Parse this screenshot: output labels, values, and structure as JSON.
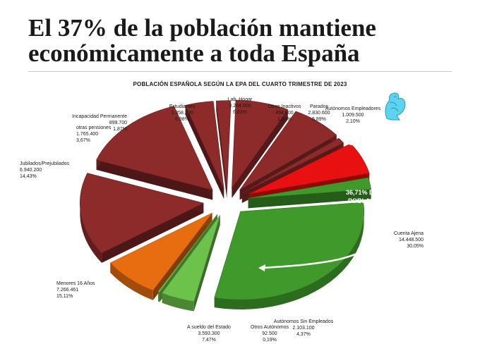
{
  "headline": "El 37% de la población mantiene económicamente a toda España",
  "colors": {
    "brown": "#8d2a2a",
    "red": "#e81010",
    "green": "#3f9a2b",
    "orange": "#e86d10"
  },
  "chart_data": {
    "type": "pie",
    "title": "POBLACIÓN ESPAÑOLA SEGÚN LA EPA DEL CUARTO TRIMESTRE DE 2023",
    "slices": [
      {
        "label": "Cuenta Ajena",
        "value": "14.448.500",
        "pct": "30,05%",
        "share": 30.05,
        "color": "#3f9a2b"
      },
      {
        "label": "Autónomos Sin Empleados",
        "value": "2.103.100",
        "pct": "4,37%",
        "share": 4.37,
        "color": "#6cc24a"
      },
      {
        "label": "Otros Autónomos",
        "value": "92.500",
        "pct": "0,19%",
        "share": 0.19,
        "color": "#6cc24a"
      },
      {
        "label": "A sueldo del Estado",
        "value": "3.593.300",
        "pct": "7,47%",
        "share": 7.47,
        "color": "#e86d10"
      },
      {
        "label": "Menores 16 Años",
        "value": "7.266.461",
        "pct": "15,11%",
        "share": 15.11,
        "color": "#8d2a2a"
      },
      {
        "label": "Jubilados/Prejubilados",
        "value": "6.940.200",
        "pct": "14,43%",
        "share": 14.43,
        "color": "#8d2a2a"
      },
      {
        "label": "otras pensiones",
        "value": "1.765.400",
        "pct": "3,67%",
        "share": 3.67,
        "color": "#8d2a2a"
      },
      {
        "label": "Incapacidad Permanente",
        "value": "899.700",
        "pct": "1,87%",
        "share": 1.87,
        "color": "#8d2a2a"
      },
      {
        "label": "Estudiantes",
        "value": "3.358.200",
        "pct": "6,98%",
        "share": 6.98,
        "color": "#8d2a2a"
      },
      {
        "label": "Lab. Hogar",
        "value": "3.284.000",
        "pct": "6,83%",
        "share": 6.83,
        "color": "#8d2a2a"
      },
      {
        "label": "Otros Inactivos",
        "value": "494.000",
        "pct": "1,03%",
        "share": 1.03,
        "color": "#8d2a2a"
      },
      {
        "label": "Parados",
        "value": "2.830.600",
        "pct": "5,89%",
        "share": 5.89,
        "color": "#e81010"
      },
      {
        "label": "Autónomos Empleadores",
        "value": "1.009.500",
        "pct": "2,10%",
        "share": 2.1,
        "color": "#3f9a2b"
      }
    ],
    "annotation": [
      "36,71% DE LA",
      "POBLACIÓN"
    ]
  }
}
